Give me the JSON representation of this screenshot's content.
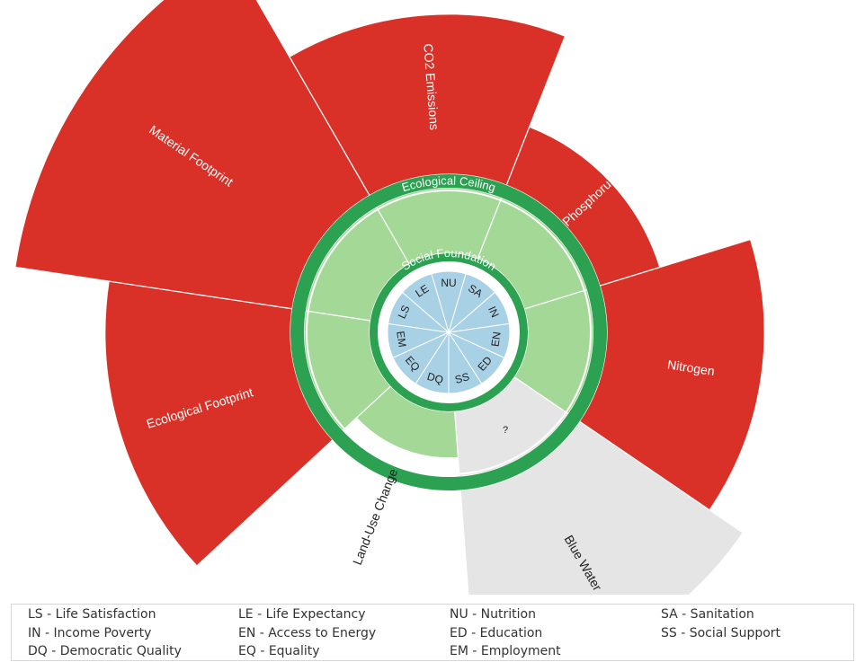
{
  "colors": {
    "overshoot": "#d93127",
    "unknown": "#e5e5e5",
    "ring": "#2ca152",
    "safe_space": "#a3d897",
    "social": "#a8d1e6",
    "text": "#222222",
    "label_on_red": "#ffffff"
  },
  "ecological_ceiling_label": "Ecological Ceiling",
  "social_foundation_label": "Social Foundation",
  "ecological": [
    {
      "label": "CO2 Emissions",
      "value": 2.15,
      "status": "overshoot"
    },
    {
      "label": "Phosphorus",
      "value": 1.45,
      "status": "overshoot"
    },
    {
      "label": "Nitrogen",
      "value": 2.13,
      "status": "overshoot"
    },
    {
      "label": "Blue Water",
      "value": 2.42,
      "status": "unknown",
      "placeholder": "?"
    },
    {
      "label": "Land-Use Change",
      "value": 0.71,
      "status": "below"
    },
    {
      "label": "Ecological Footprint",
      "value": 2.33,
      "status": "overshoot"
    },
    {
      "label": "Material Footprint",
      "value": 3.01,
      "status": "overshoot"
    }
  ],
  "social": [
    {
      "code": "NU"
    },
    {
      "code": "SA"
    },
    {
      "code": "IN"
    },
    {
      "code": "EN"
    },
    {
      "code": "ED"
    },
    {
      "code": "SS"
    },
    {
      "code": "DQ"
    },
    {
      "code": "EQ"
    },
    {
      "code": "EM"
    },
    {
      "code": "LS"
    },
    {
      "code": "LE"
    }
  ],
  "legend": [
    {
      "text": "LS - Life Satisfaction"
    },
    {
      "text": "LE - Life Expectancy"
    },
    {
      "text": "NU - Nutrition"
    },
    {
      "text": "SA - Sanitation"
    },
    {
      "text": "IN - Income Poverty"
    },
    {
      "text": "EN - Access to Energy"
    },
    {
      "text": "ED - Education"
    },
    {
      "text": "SS - Social Support"
    },
    {
      "text": "DQ - Democratic Quality"
    },
    {
      "text": "EQ - Equality"
    },
    {
      "text": "EM - Employment"
    }
  ]
}
